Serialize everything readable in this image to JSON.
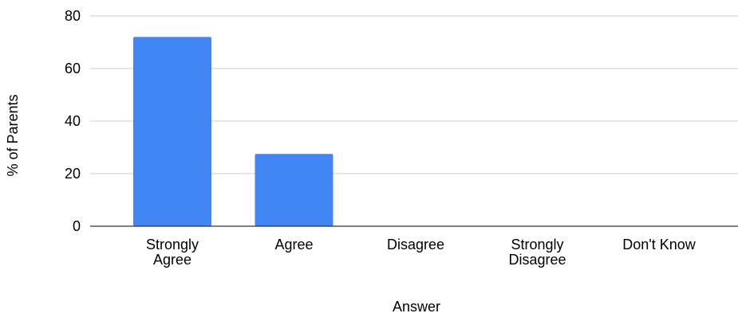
{
  "chart_data": {
    "type": "bar",
    "title": "",
    "xlabel": "Answer",
    "ylabel": "% of Parents",
    "categories": [
      [
        "Strongly",
        "Agree"
      ],
      [
        "Agree"
      ],
      [
        "Disagree"
      ],
      [
        "Strongly",
        "Disagree"
      ],
      [
        "Don't Know"
      ]
    ],
    "values": [
      72,
      27.5,
      0,
      0,
      0
    ],
    "ylim": [
      0,
      80
    ],
    "yticks": [
      0,
      20,
      40,
      60,
      80
    ],
    "bar_color": "#4285f4",
    "grid": true,
    "legend": "none"
  }
}
